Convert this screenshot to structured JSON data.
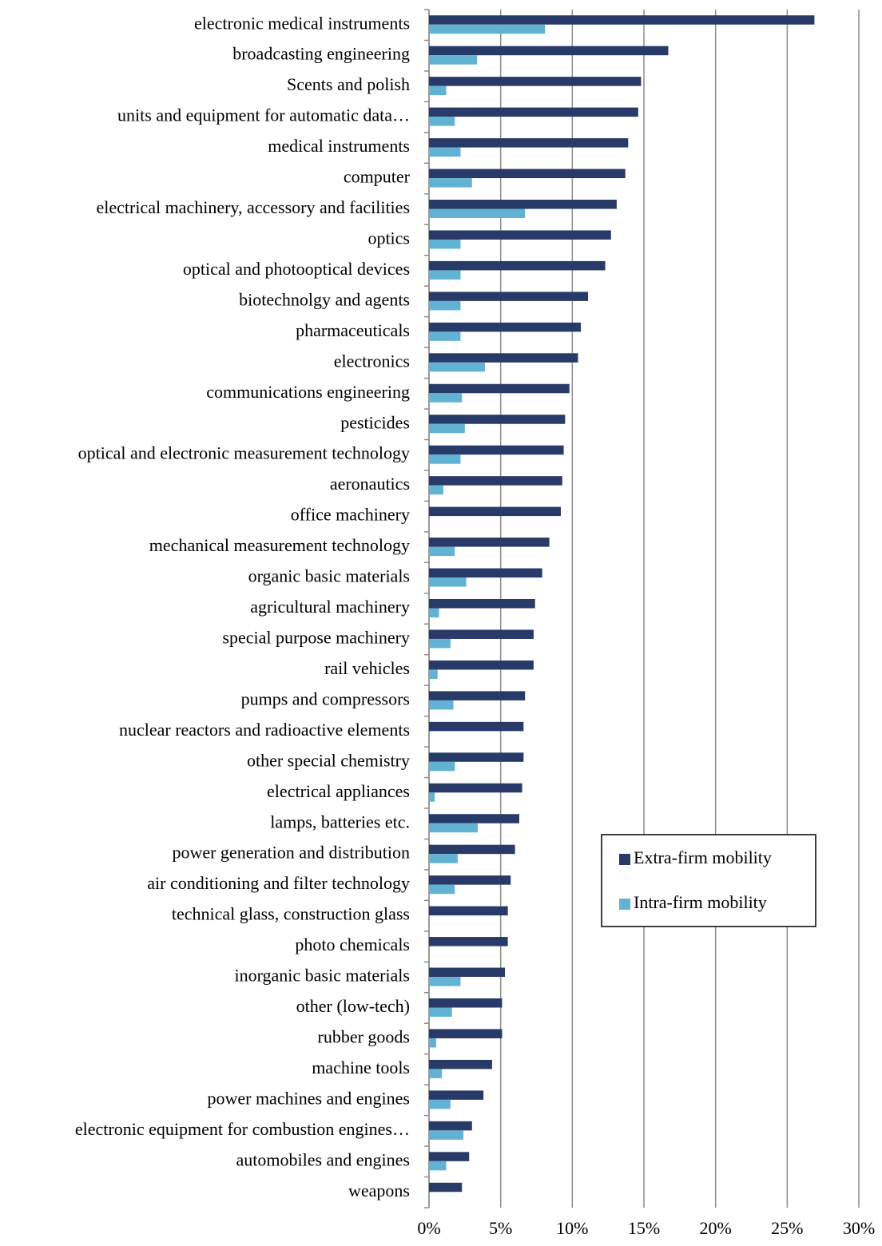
{
  "chart_data": {
    "type": "hbar",
    "categories": [
      "electronic medical instruments",
      "broadcasting engineering",
      "Scents and polish",
      "units and equipment for automatic data…",
      "medical instruments",
      "computer",
      "electrical machinery, accessory and facilities",
      "optics",
      "optical and photooptical devices",
      "biotechnolgy and agents",
      "pharmaceuticals",
      "electronics",
      "communications engineering",
      "pesticides",
      "optical and electronic measurement technology",
      "aeronautics",
      "office machinery",
      "mechanical measurement technology",
      "organic basic materials",
      "agricultural machinery",
      "special purpose machinery",
      "rail vehicles",
      "pumps and compressors",
      "nuclear reactors and radioactive elements",
      "other special chemistry",
      "electrical appliances",
      "lamps, batteries etc.",
      "power generation and distribution",
      "air conditioning and filter technology",
      "technical glass, construction glass",
      "photo chemicals",
      "inorganic basic materials",
      "other (low-tech)",
      "rubber goods",
      "machine tools",
      "power machines and engines",
      "electronic equipment for combustion engines…",
      "automobiles and engines",
      "weapons"
    ],
    "series": [
      {
        "name": "Extra-firm mobility",
        "color": "#283a67",
        "values": [
          26.9,
          16.7,
          14.8,
          14.6,
          13.9,
          13.7,
          13.1,
          12.7,
          12.3,
          11.1,
          10.6,
          10.4,
          9.8,
          9.5,
          9.4,
          9.3,
          9.2,
          8.4,
          7.9,
          7.4,
          7.3,
          7.3,
          6.7,
          6.6,
          6.6,
          6.5,
          6.3,
          6.0,
          5.7,
          5.5,
          5.5,
          5.3,
          5.1,
          5.1,
          4.4,
          3.8,
          3.0,
          2.8,
          2.3
        ]
      },
      {
        "name": "Intra-firm mobility",
        "color": "#62b3d3",
        "values": [
          8.1,
          3.35,
          1.2,
          1.8,
          2.2,
          3.0,
          6.7,
          2.2,
          2.2,
          2.2,
          2.2,
          3.9,
          2.3,
          2.5,
          2.2,
          1.0,
          0,
          1.8,
          2.6,
          0.7,
          1.5,
          0.6,
          1.7,
          0,
          1.8,
          0.4,
          3.4,
          2.0,
          1.8,
          0,
          0,
          2.2,
          1.6,
          0.5,
          0.9,
          1.5,
          2.4,
          1.2,
          0
        ]
      }
    ],
    "xlim": [
      0,
      30
    ],
    "xticks": [
      {
        "value": 0,
        "label": "0%"
      },
      {
        "value": 5,
        "label": "5%"
      },
      {
        "value": 10,
        "label": "10%"
      },
      {
        "value": 15,
        "label": "15%"
      },
      {
        "value": 20,
        "label": "20%"
      },
      {
        "value": 25,
        "label": "25%"
      },
      {
        "value": 30,
        "label": "30%"
      }
    ],
    "grid": true,
    "legend": "right"
  }
}
